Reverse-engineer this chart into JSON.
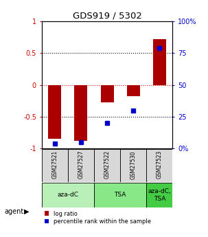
{
  "title": "GDS919 / 5302",
  "samples": [
    "GSM27521",
    "GSM27527",
    "GSM27522",
    "GSM27530",
    "GSM27523"
  ],
  "log_ratios": [
    -0.85,
    -0.88,
    -0.28,
    -0.18,
    0.72
  ],
  "percentile_ranks": [
    4,
    5,
    20,
    30,
    79
  ],
  "agents": [
    {
      "label": "aza-dC",
      "span": [
        0,
        2
      ],
      "color": "#b8f0b8"
    },
    {
      "label": "TSA",
      "span": [
        2,
        4
      ],
      "color": "#88e888"
    },
    {
      "label": "aza-dC,\nTSA",
      "span": [
        4,
        5
      ],
      "color": "#44cc44"
    }
  ],
  "ylim": [
    -1.0,
    1.0
  ],
  "yticks_left": [
    -1.0,
    -0.5,
    0.0,
    0.5,
    1.0
  ],
  "ytick_labels_left": [
    "-1",
    "-0.5",
    "0",
    "0.5",
    "1"
  ],
  "yticks_right": [
    0,
    25,
    50,
    75,
    100
  ],
  "ytick_labels_right": [
    "0%",
    "25",
    "50",
    "75",
    "100%"
  ],
  "bar_color": "#aa0000",
  "dot_color": "#0000cc",
  "bar_width": 0.5,
  "bg_color": "#ffffff",
  "sample_bg": "#d8d8d8",
  "legend_log": "log ratio",
  "legend_pct": "percentile rank within the sample"
}
